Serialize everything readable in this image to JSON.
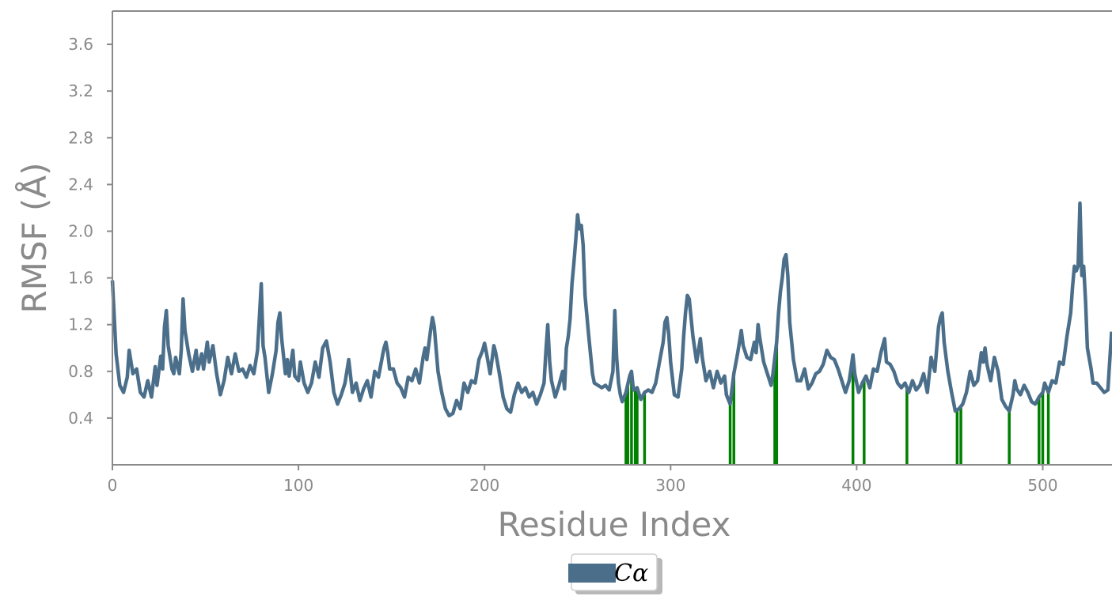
{
  "chart_data": {
    "type": "line",
    "xlabel": "Residue Index",
    "ylabel": "RMSF (Å)",
    "xlim": [
      0,
      537
    ],
    "ylim": [
      0.0,
      3.88
    ],
    "xticks": [
      0,
      100,
      200,
      300,
      400,
      500
    ],
    "yticks": [
      0.4,
      0.8,
      1.2,
      1.6,
      2.0,
      2.4,
      2.8,
      3.2,
      3.6
    ],
    "grid": false,
    "legend_position": "bottom-center",
    "colors": {
      "line": "#4b6f8a",
      "contacts": "#008000",
      "axes": "#8a8a8a"
    },
    "series": [
      {
        "name": "Cα",
        "points": [
          [
            0,
            1.58
          ],
          [
            2,
            0.95
          ],
          [
            4,
            0.68
          ],
          [
            6,
            0.62
          ],
          [
            8,
            0.75
          ],
          [
            9,
            0.98
          ],
          [
            11,
            0.78
          ],
          [
            13,
            0.82
          ],
          [
            15,
            0.62
          ],
          [
            17,
            0.58
          ],
          [
            19,
            0.72
          ],
          [
            21,
            0.58
          ],
          [
            23,
            0.84
          ],
          [
            24,
            0.68
          ],
          [
            26,
            0.93
          ],
          [
            27,
            0.82
          ],
          [
            28,
            1.18
          ],
          [
            29,
            1.32
          ],
          [
            30,
            1.02
          ],
          [
            32,
            0.82
          ],
          [
            33,
            0.78
          ],
          [
            34,
            0.92
          ],
          [
            36,
            0.78
          ],
          [
            37,
            0.98
          ],
          [
            38,
            1.42
          ],
          [
            39,
            1.15
          ],
          [
            41,
            0.95
          ],
          [
            43,
            0.8
          ],
          [
            45,
            0.98
          ],
          [
            46,
            0.82
          ],
          [
            48,
            0.95
          ],
          [
            49,
            0.82
          ],
          [
            51,
            1.05
          ],
          [
            52,
            0.88
          ],
          [
            54,
            1.02
          ],
          [
            56,
            0.78
          ],
          [
            58,
            0.6
          ],
          [
            60,
            0.72
          ],
          [
            62,
            0.92
          ],
          [
            64,
            0.78
          ],
          [
            66,
            0.95
          ],
          [
            68,
            0.8
          ],
          [
            70,
            0.82
          ],
          [
            72,
            0.75
          ],
          [
            74,
            0.85
          ],
          [
            76,
            0.78
          ],
          [
            78,
            0.98
          ],
          [
            80,
            1.55
          ],
          [
            81,
            1.02
          ],
          [
            82,
            0.92
          ],
          [
            84,
            0.62
          ],
          [
            86,
            0.78
          ],
          [
            88,
            0.98
          ],
          [
            89,
            1.22
          ],
          [
            90,
            1.3
          ],
          [
            91,
            1.08
          ],
          [
            93,
            0.78
          ],
          [
            94,
            0.9
          ],
          [
            95,
            0.76
          ],
          [
            97,
            0.98
          ],
          [
            98,
            0.76
          ],
          [
            100,
            0.72
          ],
          [
            101,
            0.88
          ],
          [
            103,
            0.7
          ],
          [
            105,
            0.62
          ],
          [
            107,
            0.7
          ],
          [
            109,
            0.88
          ],
          [
            111,
            0.75
          ],
          [
            113,
            1.0
          ],
          [
            115,
            1.06
          ],
          [
            117,
            0.88
          ],
          [
            119,
            0.62
          ],
          [
            121,
            0.52
          ],
          [
            123,
            0.6
          ],
          [
            125,
            0.7
          ],
          [
            127,
            0.9
          ],
          [
            129,
            0.62
          ],
          [
            131,
            0.7
          ],
          [
            133,
            0.55
          ],
          [
            135,
            0.65
          ],
          [
            137,
            0.72
          ],
          [
            139,
            0.58
          ],
          [
            141,
            0.8
          ],
          [
            143,
            0.75
          ],
          [
            145,
            0.92
          ],
          [
            146,
            1.0
          ],
          [
            147,
            1.05
          ],
          [
            148,
            0.96
          ],
          [
            149,
            0.82
          ],
          [
            151,
            0.82
          ],
          [
            153,
            0.7
          ],
          [
            155,
            0.66
          ],
          [
            157,
            0.58
          ],
          [
            159,
            0.75
          ],
          [
            161,
            0.72
          ],
          [
            163,
            0.82
          ],
          [
            165,
            0.7
          ],
          [
            167,
            0.92
          ],
          [
            168,
            1.0
          ],
          [
            169,
            0.9
          ],
          [
            171,
            1.15
          ],
          [
            172,
            1.26
          ],
          [
            173,
            1.18
          ],
          [
            175,
            0.8
          ],
          [
            177,
            0.62
          ],
          [
            179,
            0.48
          ],
          [
            181,
            0.42
          ],
          [
            183,
            0.44
          ],
          [
            185,
            0.55
          ],
          [
            187,
            0.48
          ],
          [
            189,
            0.7
          ],
          [
            191,
            0.62
          ],
          [
            193,
            0.72
          ],
          [
            195,
            0.7
          ],
          [
            197,
            0.9
          ],
          [
            199,
            0.98
          ],
          [
            200,
            1.04
          ],
          [
            201,
            0.96
          ],
          [
            203,
            0.78
          ],
          [
            205,
            1.02
          ],
          [
            206,
            0.96
          ],
          [
            208,
            0.78
          ],
          [
            210,
            0.58
          ],
          [
            212,
            0.48
          ],
          [
            214,
            0.45
          ],
          [
            216,
            0.6
          ],
          [
            218,
            0.7
          ],
          [
            220,
            0.62
          ],
          [
            222,
            0.66
          ],
          [
            224,
            0.58
          ],
          [
            226,
            0.62
          ],
          [
            228,
            0.52
          ],
          [
            230,
            0.6
          ],
          [
            232,
            0.7
          ],
          [
            233,
            0.98
          ],
          [
            234,
            1.2
          ],
          [
            235,
            0.88
          ],
          [
            236,
            0.72
          ],
          [
            238,
            0.58
          ],
          [
            240,
            0.68
          ],
          [
            242,
            0.8
          ],
          [
            243,
            0.65
          ],
          [
            244,
            1.0
          ],
          [
            245,
            1.1
          ],
          [
            246,
            1.25
          ],
          [
            247,
            1.55
          ],
          [
            248,
            1.72
          ],
          [
            249,
            1.92
          ],
          [
            250,
            2.14
          ],
          [
            251,
            2.02
          ],
          [
            252,
            2.05
          ],
          [
            253,
            1.88
          ],
          [
            254,
            1.45
          ],
          [
            256,
            1.1
          ],
          [
            258,
            0.78
          ],
          [
            259,
            0.7
          ],
          [
            261,
            0.68
          ],
          [
            263,
            0.66
          ],
          [
            265,
            0.68
          ],
          [
            267,
            0.64
          ],
          [
            269,
            0.8
          ],
          [
            270,
            1.32
          ],
          [
            271,
            0.92
          ],
          [
            272,
            0.7
          ],
          [
            273,
            0.6
          ],
          [
            274,
            0.54
          ],
          [
            276,
            0.62
          ],
          [
            278,
            0.76
          ],
          [
            279,
            0.8
          ],
          [
            280,
            0.64
          ],
          [
            282,
            0.66
          ],
          [
            284,
            0.56
          ],
          [
            286,
            0.62
          ],
          [
            288,
            0.64
          ],
          [
            290,
            0.62
          ],
          [
            292,
            0.7
          ],
          [
            294,
            0.88
          ],
          [
            296,
            1.05
          ],
          [
            297,
            1.22
          ],
          [
            298,
            1.26
          ],
          [
            299,
            1.12
          ],
          [
            300,
            0.88
          ],
          [
            302,
            0.6
          ],
          [
            304,
            0.58
          ],
          [
            306,
            0.82
          ],
          [
            307,
            1.1
          ],
          [
            308,
            1.3
          ],
          [
            309,
            1.45
          ],
          [
            310,
            1.42
          ],
          [
            312,
            1.1
          ],
          [
            314,
            0.88
          ],
          [
            316,
            1.08
          ],
          [
            317,
            0.92
          ],
          [
            319,
            0.72
          ],
          [
            321,
            0.8
          ],
          [
            323,
            0.66
          ],
          [
            325,
            0.8
          ],
          [
            327,
            0.7
          ],
          [
            329,
            0.76
          ],
          [
            330,
            0.6
          ],
          [
            332,
            0.52
          ],
          [
            334,
            0.78
          ],
          [
            336,
            0.95
          ],
          [
            337,
            1.05
          ],
          [
            338,
            1.15
          ],
          [
            339,
            1.02
          ],
          [
            341,
            0.92
          ],
          [
            343,
            0.9
          ],
          [
            345,
            1.05
          ],
          [
            346,
            0.96
          ],
          [
            347,
            1.2
          ],
          [
            348,
            1.08
          ],
          [
            350,
            0.88
          ],
          [
            352,
            0.78
          ],
          [
            354,
            0.68
          ],
          [
            355,
            0.78
          ],
          [
            357,
            1.05
          ],
          [
            358,
            1.3
          ],
          [
            359,
            1.48
          ],
          [
            360,
            1.6
          ],
          [
            361,
            1.76
          ],
          [
            362,
            1.8
          ],
          [
            363,
            1.62
          ],
          [
            364,
            1.22
          ],
          [
            366,
            0.9
          ],
          [
            368,
            0.72
          ],
          [
            370,
            0.72
          ],
          [
            372,
            0.82
          ],
          [
            374,
            0.65
          ],
          [
            376,
            0.7
          ],
          [
            378,
            0.78
          ],
          [
            380,
            0.8
          ],
          [
            382,
            0.86
          ],
          [
            384,
            0.98
          ],
          [
            386,
            0.92
          ],
          [
            388,
            0.9
          ],
          [
            390,
            0.82
          ],
          [
            392,
            0.72
          ],
          [
            394,
            0.62
          ],
          [
            396,
            0.72
          ],
          [
            398,
            0.94
          ],
          [
            399,
            0.78
          ],
          [
            401,
            0.62
          ],
          [
            403,
            0.7
          ],
          [
            405,
            0.76
          ],
          [
            407,
            0.66
          ],
          [
            409,
            0.82
          ],
          [
            411,
            0.8
          ],
          [
            413,
            0.96
          ],
          [
            415,
            1.08
          ],
          [
            416,
            0.88
          ],
          [
            418,
            0.86
          ],
          [
            420,
            0.8
          ],
          [
            422,
            0.7
          ],
          [
            424,
            0.66
          ],
          [
            426,
            0.7
          ],
          [
            428,
            0.62
          ],
          [
            430,
            0.72
          ],
          [
            432,
            0.64
          ],
          [
            434,
            0.68
          ],
          [
            436,
            0.78
          ],
          [
            438,
            0.62
          ],
          [
            440,
            0.92
          ],
          [
            442,
            0.8
          ],
          [
            444,
            1.18
          ],
          [
            445,
            1.26
          ],
          [
            446,
            1.3
          ],
          [
            447,
            1.05
          ],
          [
            449,
            0.8
          ],
          [
            451,
            0.62
          ],
          [
            453,
            0.46
          ],
          [
            455,
            0.48
          ],
          [
            457,
            0.52
          ],
          [
            459,
            0.62
          ],
          [
            461,
            0.8
          ],
          [
            463,
            0.68
          ],
          [
            465,
            0.72
          ],
          [
            467,
            0.96
          ],
          [
            468,
            0.88
          ],
          [
            469,
            1.0
          ],
          [
            470,
            0.86
          ],
          [
            472,
            0.72
          ],
          [
            474,
            0.92
          ],
          [
            476,
            0.8
          ],
          [
            478,
            0.56
          ],
          [
            480,
            0.5
          ],
          [
            482,
            0.46
          ],
          [
            484,
            0.6
          ],
          [
            485,
            0.72
          ],
          [
            486,
            0.65
          ],
          [
            488,
            0.6
          ],
          [
            490,
            0.68
          ],
          [
            492,
            0.62
          ],
          [
            494,
            0.54
          ],
          [
            496,
            0.52
          ],
          [
            498,
            0.58
          ],
          [
            500,
            0.62
          ],
          [
            501,
            0.7
          ],
          [
            503,
            0.62
          ],
          [
            505,
            0.72
          ],
          [
            507,
            0.7
          ],
          [
            509,
            0.88
          ],
          [
            511,
            0.86
          ],
          [
            513,
            1.1
          ],
          [
            515,
            1.3
          ],
          [
            516,
            1.52
          ],
          [
            517,
            1.7
          ],
          [
            518,
            1.66
          ],
          [
            519,
            1.7
          ],
          [
            520,
            2.24
          ],
          [
            521,
            1.62
          ],
          [
            522,
            1.7
          ],
          [
            523,
            1.4
          ],
          [
            524,
            1.0
          ],
          [
            526,
            0.82
          ],
          [
            527,
            0.7
          ],
          [
            529,
            0.7
          ],
          [
            531,
            0.66
          ],
          [
            533,
            0.62
          ],
          [
            535,
            0.64
          ],
          [
            537,
            1.14
          ]
        ]
      }
    ],
    "contact_residues": [
      276,
      277,
      279,
      281,
      282,
      286,
      332,
      334,
      356,
      357,
      398,
      404,
      427,
      454,
      456,
      482,
      498,
      500,
      503
    ]
  }
}
